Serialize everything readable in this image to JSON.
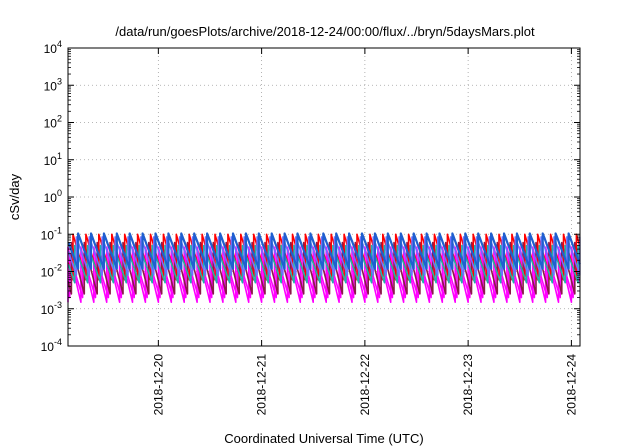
{
  "chart_data": {
    "type": "line",
    "title": "/data/run/goesPlots/archive/2018-12-24/00:00/flux/../bryn/5daysMars.plot",
    "xlabel": "Coordinated Universal Time (UTC)",
    "ylabel": "cSv/day",
    "yscale": "log",
    "ylim": [
      0.0001,
      10000
    ],
    "xlim": [
      "2018-12-19 03:00",
      "2018-12-24 02:00"
    ],
    "y_ticks": [
      {
        "base": "10",
        "exp": "-4",
        "value": 0.0001
      },
      {
        "base": "10",
        "exp": "-3",
        "value": 0.001
      },
      {
        "base": "10",
        "exp": "-2",
        "value": 0.01
      },
      {
        "base": "10",
        "exp": "-1",
        "value": 0.1
      },
      {
        "base": "10",
        "exp": "0",
        "value": 1
      },
      {
        "base": "10",
        "exp": "1",
        "value": 10
      },
      {
        "base": "10",
        "exp": "2",
        "value": 100
      },
      {
        "base": "10",
        "exp": "3",
        "value": 1000
      },
      {
        "base": "10",
        "exp": "4",
        "value": 10000
      }
    ],
    "x_ticks": [
      "2018-12-20",
      "2018-12-21",
      "2018-12-22",
      "2018-12-23",
      "2018-12-24"
    ],
    "grid": true,
    "legend": "none",
    "sawtooth_period_hours": 3,
    "series": [
      {
        "color": "#ff00ff",
        "peak": 0.045,
        "trough": 0.0015
      },
      {
        "color": "#ff00ff",
        "peak": 0.03,
        "trough": 0.002
      },
      {
        "color": "#8b1a4a",
        "peak": 0.06,
        "trough": 0.0025
      },
      {
        "color": "#ff0000",
        "peak": 0.1,
        "trough": 0.006
      },
      {
        "color": "#20b2aa",
        "peak": 0.05,
        "trough": 0.005
      },
      {
        "color": "#7070ff",
        "peak": 0.085,
        "trough": 0.008
      },
      {
        "color": "#1f5fd0",
        "peak": 0.105,
        "trough": 0.012
      }
    ]
  }
}
